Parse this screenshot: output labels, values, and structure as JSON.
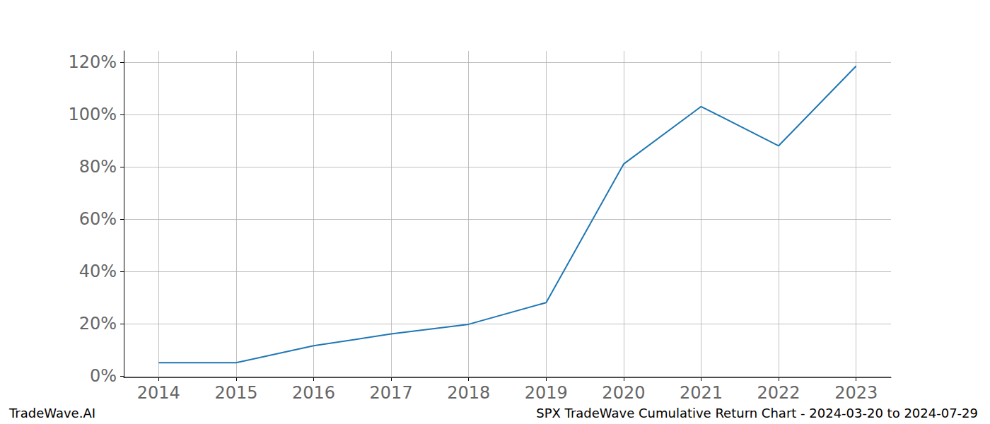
{
  "chart_data": {
    "type": "line",
    "x": [
      2014,
      2015,
      2016,
      2017,
      2018,
      2019,
      2020,
      2021,
      2022,
      2023
    ],
    "values": [
      5,
      5,
      11.5,
      16,
      19.7,
      28,
      81,
      103,
      88,
      118.5
    ],
    "color": "#1f77b4",
    "xlim": [
      2013.55,
      2023.45
    ],
    "xticks": [
      2014,
      2015,
      2016,
      2017,
      2018,
      2019,
      2020,
      2021,
      2022,
      2023
    ],
    "ylim": [
      -0.6,
      124.3
    ],
    "yticks": [
      {
        "value": 0,
        "label": "0%"
      },
      {
        "value": 20,
        "label": "20%"
      },
      {
        "value": 40,
        "label": "40%"
      },
      {
        "value": 60,
        "label": "60%"
      },
      {
        "value": 80,
        "label": "80%"
      },
      {
        "value": 100,
        "label": "100%"
      },
      {
        "value": 120,
        "label": "120%"
      }
    ],
    "grid": true,
    "annotations": [
      "TradeWave.AI",
      "SPX TradeWave Cumulative Return Chart - 2024-03-20 to 2024-07-29"
    ]
  }
}
